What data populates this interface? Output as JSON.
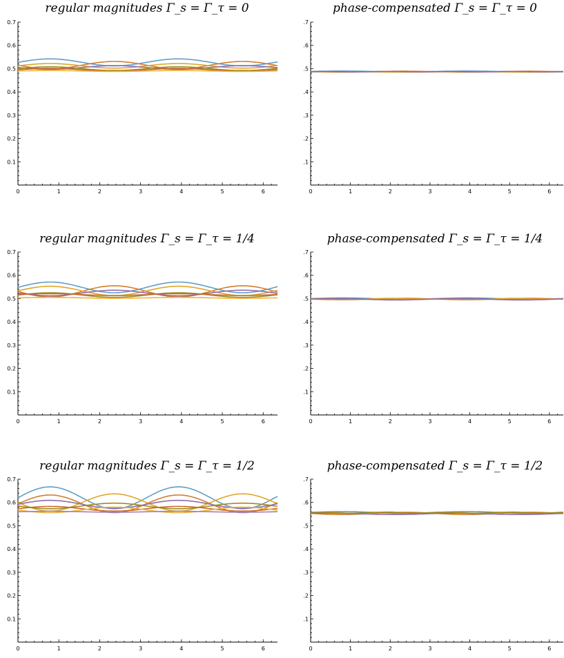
{
  "colors": [
    "#5e9ec9",
    "#d27d2c",
    "#e0a526",
    "#8e6bab",
    "#9d8a1e",
    "#c46a2f",
    "#f0b339",
    "#a07fb8",
    "#a6961f"
  ],
  "chart_data": [
    {
      "type": "line",
      "title": "regular magnitudes Γ_s = Γ_τ = 0",
      "xlim": [
        0,
        6.35
      ],
      "ylim": [
        0,
        0.7
      ],
      "xticks": [
        "0",
        "1",
        "2",
        "3",
        "4",
        "5",
        "6"
      ],
      "yticks": [
        "0.1",
        "0.2",
        "0.3",
        "0.4",
        "0.5",
        "0.6",
        "0.7"
      ],
      "grid": false,
      "series": [
        {
          "base": 0.527,
          "amp": 0.015,
          "freq": 2,
          "phase": 0
        },
        {
          "base": 0.515,
          "amp": -0.016,
          "freq": 2,
          "phase": 0
        },
        {
          "base": 0.512,
          "amp": 0.01,
          "freq": 2,
          "phase": 0
        },
        {
          "base": 0.505,
          "amp": -0.008,
          "freq": 2,
          "phase": 0
        },
        {
          "base": 0.5,
          "amp": 0.008,
          "freq": 2,
          "phase": 0
        },
        {
          "base": 0.495,
          "amp": 0.006,
          "freq": 2,
          "phase": 0
        },
        {
          "base": 0.49,
          "amp": 0.002,
          "freq": 2,
          "phase": 0
        }
      ]
    },
    {
      "type": "line",
      "title": "phase-compensated Γ_s = Γ_τ = 0",
      "xlim": [
        0,
        6.35
      ],
      "ylim": [
        0,
        0.7
      ],
      "xticks": [
        "0",
        "1",
        "2",
        "3",
        "4",
        "5",
        "6"
      ],
      "yticks": [
        ".1",
        ".2",
        ".3",
        ".4",
        ".5",
        ".6",
        ".7"
      ],
      "grid": false,
      "series": [
        {
          "base": 0.488,
          "amp": 0.002,
          "freq": 2,
          "phase": 0
        },
        {
          "base": 0.487,
          "amp": -0.002,
          "freq": 2,
          "phase": 0
        },
        {
          "base": 0.486,
          "amp": 0.001,
          "freq": 2,
          "phase": 0
        },
        {
          "base": 0.487,
          "amp": 0.001,
          "freq": 4,
          "phase": 0
        }
      ]
    },
    {
      "type": "line",
      "title": "regular magnitudes Γ_s = Γ_τ = 1/4",
      "xlim": [
        0,
        6.35
      ],
      "ylim": [
        0,
        0.7
      ],
      "xticks": [
        "0",
        "1",
        "2",
        "3",
        "4",
        "5",
        "6"
      ],
      "yticks": [
        "0.1",
        "0.2",
        "0.3",
        "0.4",
        "0.5",
        "0.6",
        "0.7"
      ],
      "grid": false,
      "series": [
        {
          "base": 0.548,
          "amp": 0.023,
          "freq": 2,
          "phase": 0
        },
        {
          "base": 0.531,
          "amp": -0.024,
          "freq": 2,
          "phase": 0
        },
        {
          "base": 0.533,
          "amp": 0.02,
          "freq": 2,
          "phase": 0
        },
        {
          "base": 0.524,
          "amp": -0.012,
          "freq": 2,
          "phase": 0
        },
        {
          "base": 0.515,
          "amp": 0.01,
          "freq": 2,
          "phase": 0
        },
        {
          "base": 0.517,
          "amp": 0.004,
          "freq": 2,
          "phase": 0
        },
        {
          "base": 0.503,
          "amp": 0.002,
          "freq": 2,
          "phase": 0
        }
      ]
    },
    {
      "type": "line",
      "title": "phase-compensated Γ_s = Γ_τ = 1/4",
      "xlim": [
        0,
        6.35
      ],
      "ylim": [
        0,
        0.7
      ],
      "xticks": [
        "0",
        "1",
        "2",
        "3",
        "4",
        "5",
        "6"
      ],
      "yticks": [
        ".1",
        ".2",
        ".3",
        ".4",
        ".5",
        ".6",
        ".7"
      ],
      "grid": false,
      "series": [
        {
          "base": 0.5,
          "amp": 0.003,
          "freq": 2,
          "phase": 0
        },
        {
          "base": 0.498,
          "amp": -0.003,
          "freq": 2,
          "phase": 0
        },
        {
          "base": 0.499,
          "amp": 0.002,
          "freq": 4,
          "phase": 0
        },
        {
          "base": 0.497,
          "amp": 0.003,
          "freq": 2,
          "phase": 0.4
        }
      ]
    },
    {
      "type": "line",
      "title": "regular magnitudes Γ_s = Γ_τ = 1/2",
      "xlim": [
        0,
        6.35
      ],
      "ylim": [
        0,
        0.7
      ],
      "xticks": [
        "0",
        "1",
        "2",
        "3",
        "4",
        "5",
        "6"
      ],
      "yticks": [
        "0.1",
        "0.2",
        "0.3",
        "0.4",
        "0.5",
        "0.6",
        "0.7"
      ],
      "grid": false,
      "series": [
        {
          "base": 0.62,
          "amp": 0.047,
          "freq": 2,
          "phase": 0
        },
        {
          "base": 0.594,
          "amp": 0.038,
          "freq": 2,
          "phase": 0
        },
        {
          "base": 0.6,
          "amp": -0.037,
          "freq": 2,
          "phase": 0
        },
        {
          "base": 0.592,
          "amp": 0.017,
          "freq": 2,
          "phase": 0
        },
        {
          "base": 0.585,
          "amp": -0.012,
          "freq": 2,
          "phase": 0
        },
        {
          "base": 0.573,
          "amp": 0.01,
          "freq": 2,
          "phase": 0
        },
        {
          "base": 0.568,
          "amp": -0.012,
          "freq": 2,
          "phase": 0
        },
        {
          "base": 0.56,
          "amp": 0.002,
          "freq": 2,
          "phase": 0
        }
      ]
    },
    {
      "type": "line",
      "title": "phase-compensated Γ_s = Γ_τ = 1/2",
      "xlim": [
        0,
        6.35
      ],
      "ylim": [
        0,
        0.7
      ],
      "xticks": [
        "0",
        "1",
        "2",
        "3",
        "4",
        "5",
        "6"
      ],
      "yticks": [
        ".1",
        ".2",
        ".3",
        ".4",
        ".5",
        ".6",
        ".7"
      ],
      "grid": false,
      "series": [
        {
          "base": 0.557,
          "amp": 0.004,
          "freq": 2,
          "phase": 0
        },
        {
          "base": 0.553,
          "amp": -0.005,
          "freq": 2,
          "phase": 0
        },
        {
          "base": 0.555,
          "amp": 0.004,
          "freq": 4,
          "phase": 0
        },
        {
          "base": 0.551,
          "amp": 0.003,
          "freq": 2,
          "phase": 0.5
        },
        {
          "base": 0.556,
          "amp": 0.002,
          "freq": 4,
          "phase": 0.8
        }
      ]
    }
  ]
}
